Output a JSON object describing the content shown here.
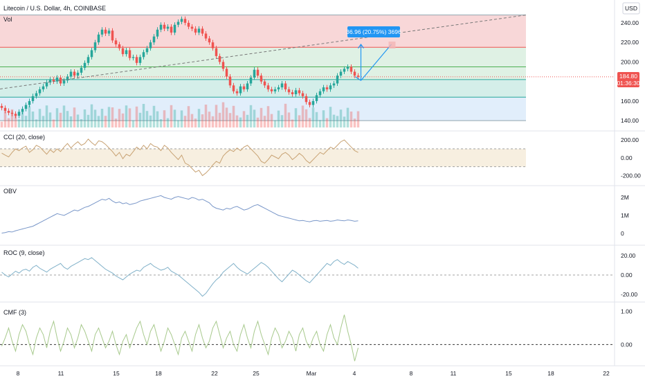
{
  "header": {
    "symbol": "Litecoin / U.S. Dollar, 4h, COINBASE",
    "volume_label": "Vol",
    "currency": "USD"
  },
  "colors": {
    "up": "#26a69a",
    "down": "#ef5350",
    "zone_red": "#f8d7d8",
    "zone_green": "#dff1e4",
    "zone_teal": "#d4eee9",
    "zone_blue": "#e1eefb",
    "indicator_line": "#2196f3",
    "cci_line": "#c8a273",
    "obv_line": "#7896c8",
    "roc_line": "#7fb0c8",
    "cmf_line": "#a7c98c",
    "price_tag": "#ef5350",
    "measure_tag": "#2196f3"
  },
  "price_tag": {
    "price": "184.80",
    "countdown": "01:36:30"
  },
  "measure_label": "36.96 (20.75%) 3696",
  "x_axis": {
    "ticks": [
      "8",
      "11",
      "15",
      "18",
      "22",
      "25",
      "Mar",
      "4",
      "8",
      "11",
      "15",
      "18",
      "22"
    ]
  },
  "chart_data": [
    {
      "type": "candlestick",
      "title": "Litecoin / U.S. Dollar, 4h, COINBASE",
      "ylim": [
        133,
        252
      ],
      "y_ticks": [
        "240.00",
        "220.00",
        "200.00",
        "180.00",
        "160.00",
        "140.00"
      ],
      "close": [
        153,
        150,
        148,
        147,
        145,
        149,
        152,
        156,
        160,
        165,
        168,
        172,
        175,
        179,
        182,
        180,
        184,
        178,
        181,
        185,
        190,
        186,
        189,
        194,
        199,
        205,
        212,
        220,
        228,
        233,
        229,
        232,
        222,
        218,
        214,
        208,
        212,
        204,
        205,
        199,
        205,
        210,
        214,
        220,
        226,
        233,
        238,
        234,
        236,
        230,
        238,
        241,
        244,
        240,
        236,
        234,
        230,
        234,
        229,
        224,
        220,
        214,
        206,
        200,
        193,
        185,
        176,
        170,
        168,
        175,
        172,
        178,
        184,
        192,
        186,
        180,
        176,
        172,
        170,
        172,
        174,
        178,
        172,
        169,
        167,
        171,
        168,
        165,
        159,
        156,
        160,
        166,
        170,
        174,
        172,
        176,
        178,
        186,
        190,
        193,
        195,
        190,
        186,
        184.8
      ],
      "levels": [
        215,
        195,
        182,
        164,
        140
      ],
      "volume_label": "Vol"
    },
    {
      "type": "line",
      "title": "CCI (20, close)",
      "ylim": [
        -250,
        270
      ],
      "y_ticks": [
        "200.00",
        "0.00",
        "-200.00"
      ],
      "band": [
        -100,
        100
      ],
      "values": [
        52,
        30,
        10,
        60,
        100,
        80,
        110,
        130,
        60,
        90,
        140,
        120,
        80,
        40,
        90,
        60,
        100,
        70,
        120,
        160,
        110,
        150,
        180,
        140,
        160,
        210,
        170,
        140,
        190,
        180,
        150,
        110,
        70,
        20,
        60,
        -10,
        40,
        20,
        70,
        120,
        90,
        140,
        100,
        160,
        130,
        120,
        80,
        140,
        110,
        60,
        20,
        -20,
        30,
        -60,
        -80,
        -120,
        -160,
        -140,
        -200,
        -170,
        -130,
        -80,
        -40,
        -60,
        20,
        60,
        90,
        70,
        110,
        80,
        120,
        140,
        100,
        60,
        20,
        -40,
        -60,
        -20,
        30,
        10,
        -10,
        40,
        60,
        30,
        -20,
        10,
        50,
        20,
        -30,
        -60,
        -20,
        20,
        60,
        40,
        80,
        120,
        100,
        140,
        180,
        200,
        160,
        120,
        80,
        60
      ]
    },
    {
      "type": "line",
      "title": "OBV",
      "ylim": [
        -0.5,
        2.5
      ],
      "y_ticks": [
        "2M",
        "1M",
        "0"
      ],
      "values": [
        0.02,
        0.05,
        0.1,
        0.08,
        0.15,
        0.2,
        0.25,
        0.3,
        0.35,
        0.4,
        0.5,
        0.6,
        0.7,
        0.8,
        0.9,
        1.0,
        1.1,
        1.05,
        1.0,
        1.1,
        1.2,
        1.3,
        1.25,
        1.35,
        1.45,
        1.5,
        1.6,
        1.7,
        1.8,
        1.9,
        1.85,
        1.95,
        1.8,
        1.7,
        1.75,
        1.65,
        1.7,
        1.6,
        1.65,
        1.7,
        1.8,
        1.85,
        1.9,
        1.95,
        2.0,
        2.05,
        2.1,
        2.0,
        1.95,
        1.9,
        2.0,
        2.05,
        2.0,
        1.95,
        1.9,
        2.0,
        1.95,
        1.85,
        1.9,
        1.8,
        1.7,
        1.5,
        1.4,
        1.35,
        1.3,
        1.4,
        1.35,
        1.45,
        1.5,
        1.4,
        1.3,
        1.35,
        1.45,
        1.55,
        1.6,
        1.5,
        1.4,
        1.3,
        1.2,
        1.1,
        1.0,
        0.95,
        0.9,
        0.85,
        0.8,
        0.75,
        0.7,
        0.72,
        0.68,
        0.65,
        0.7,
        0.72,
        0.68,
        0.7,
        0.72,
        0.68,
        0.7,
        0.75,
        0.72,
        0.7,
        0.75,
        0.72,
        0.68,
        0.7
      ]
    },
    {
      "type": "line",
      "title": "ROC (9, close)",
      "ylim": [
        -28,
        28
      ],
      "y_ticks": [
        "20.00",
        "0.00",
        "-20.00"
      ],
      "values": [
        3,
        0,
        -2,
        1,
        4,
        2,
        5,
        6,
        4,
        8,
        10,
        7,
        5,
        3,
        6,
        8,
        10,
        12,
        8,
        6,
        9,
        11,
        13,
        15,
        17,
        16,
        18,
        15,
        12,
        9,
        6,
        4,
        2,
        -1,
        -3,
        -5,
        -2,
        1,
        3,
        5,
        4,
        8,
        10,
        12,
        9,
        7,
        5,
        6,
        8,
        4,
        2,
        0,
        -3,
        -6,
        -9,
        -12,
        -15,
        -18,
        -22,
        -19,
        -14,
        -9,
        -5,
        -2,
        3,
        6,
        9,
        12,
        8,
        5,
        3,
        1,
        4,
        7,
        10,
        13,
        11,
        8,
        4,
        0,
        -4,
        -7,
        -3,
        1,
        5,
        3,
        0,
        -3,
        -6,
        -8,
        -4,
        0,
        4,
        8,
        12,
        10,
        14,
        16,
        13,
        11,
        14,
        12,
        10,
        7
      ]
    },
    {
      "type": "line",
      "title": "CMF (3)",
      "ylim": [
        -0.6,
        1.2
      ],
      "y_ticks": [
        "1.00",
        "0.00"
      ],
      "values": [
        -0.05,
        0.2,
        0.5,
        0.1,
        -0.2,
        0.3,
        0.6,
        0.4,
        0.0,
        -0.3,
        0.2,
        0.5,
        0.3,
        -0.1,
        0.4,
        0.7,
        0.2,
        -0.2,
        0.1,
        0.5,
        0.3,
        -0.1,
        0.2,
        0.6,
        0.4,
        0.1,
        -0.2,
        0.3,
        0.5,
        0.2,
        -0.1,
        0.1,
        0.4,
        0.0,
        -0.3,
        0.1,
        0.3,
        -0.1,
        0.2,
        0.5,
        0.7,
        0.3,
        0.0,
        0.4,
        0.6,
        0.2,
        -0.2,
        0.1,
        0.5,
        0.3,
        0.0,
        -0.3,
        0.2,
        0.4,
        0.1,
        -0.2,
        0.3,
        0.6,
        0.2,
        -0.1,
        0.1,
        0.5,
        0.7,
        0.3,
        -0.1,
        0.2,
        0.4,
        0.0,
        -0.2,
        0.3,
        0.6,
        0.2,
        -0.1,
        0.4,
        0.7,
        0.3,
        0.0,
        -0.3,
        0.2,
        0.5,
        0.3,
        -0.1,
        0.1,
        0.4,
        0.2,
        -0.2,
        0.3,
        0.5,
        0.1,
        -0.1,
        0.2,
        0.4,
        0.0,
        -0.2,
        0.3,
        0.6,
        0.2,
        0.0,
        0.5,
        0.9,
        0.4,
        0.0,
        -0.5,
        -0.1
      ]
    }
  ]
}
